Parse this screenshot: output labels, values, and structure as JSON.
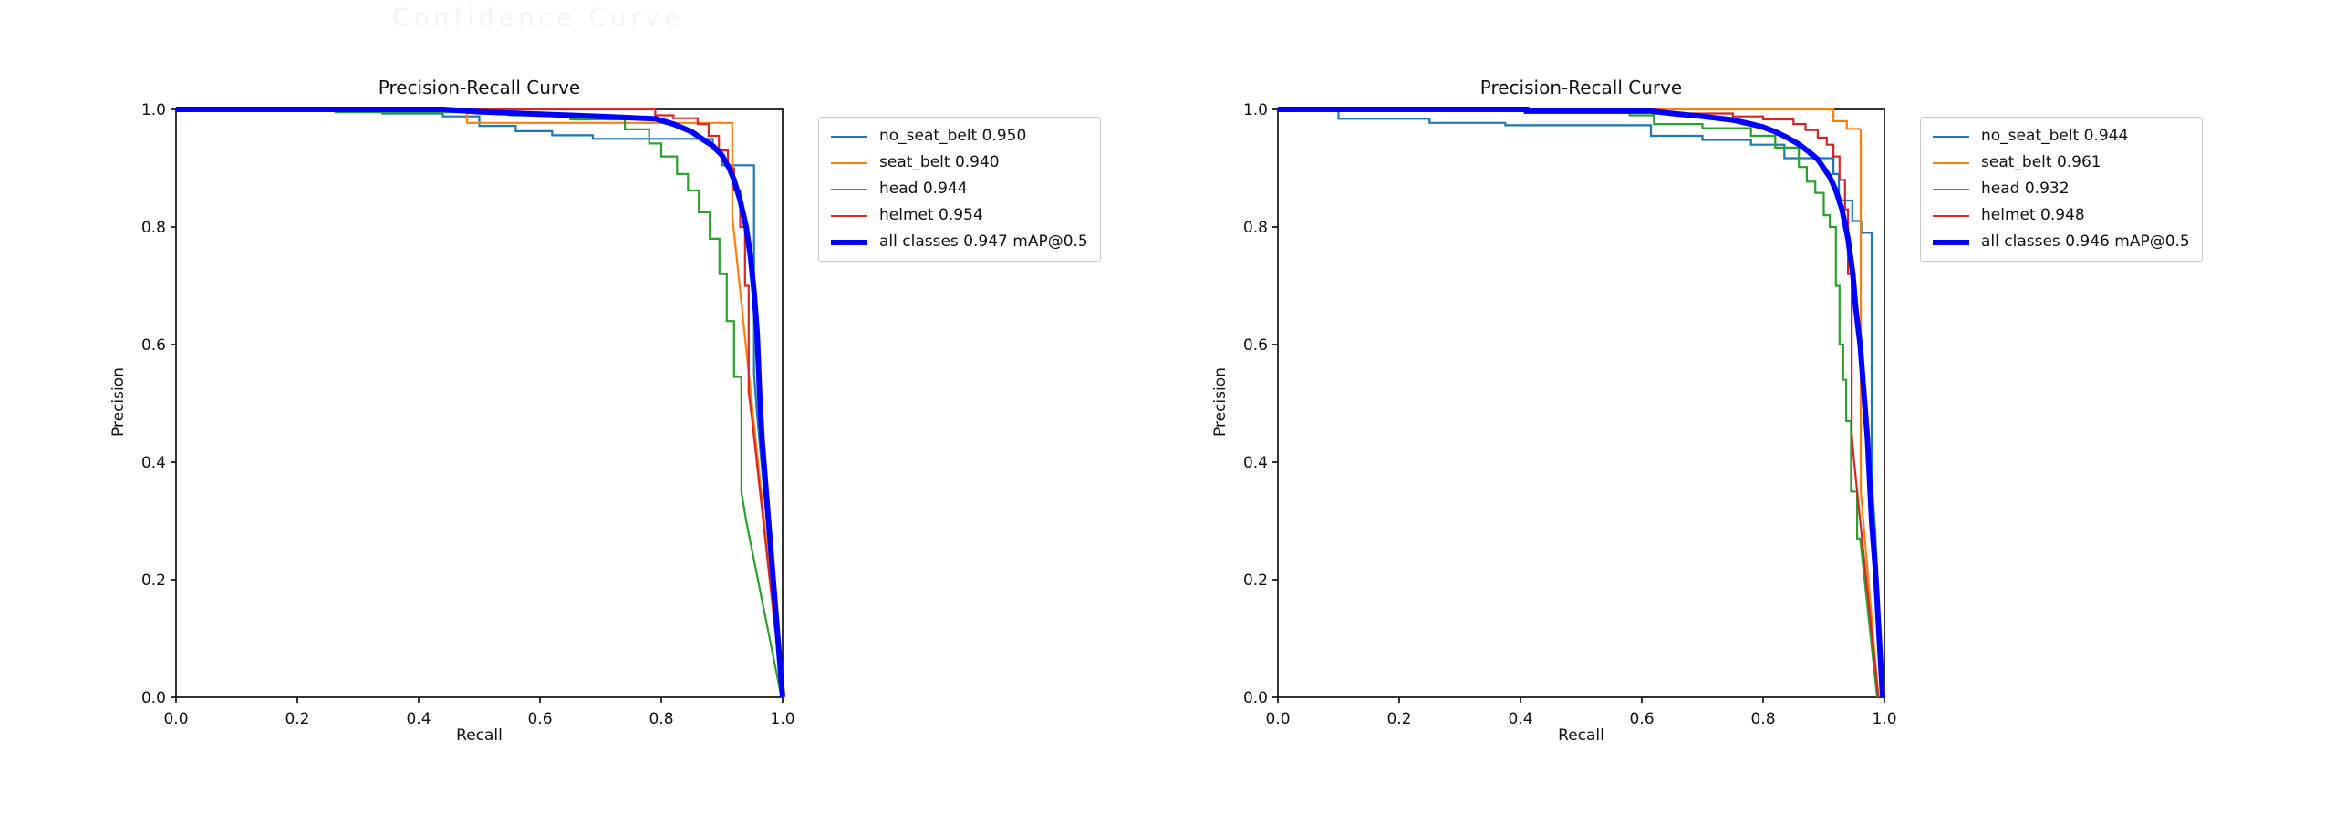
{
  "page": {
    "background": "#ffffff",
    "ghost_text": "Confidence Curve"
  },
  "chart_data": [
    {
      "type": "line",
      "side": "left",
      "title": "Precision-Recall Curve",
      "xlabel": "Recall",
      "ylabel": "Precision",
      "xlim": [
        0.0,
        1.0
      ],
      "ylim": [
        0.0,
        1.0
      ],
      "xticks": [
        "0.0",
        "0.2",
        "0.4",
        "0.6",
        "0.8",
        "1.0"
      ],
      "yticks": [
        "0.0",
        "0.2",
        "0.4",
        "0.6",
        "0.8",
        "1.0"
      ],
      "grid": false,
      "legend_position": "outside-right",
      "series": [
        {
          "name": "no_seat_belt 0.950",
          "color": "#1f77b4",
          "width": 2.2,
          "points": [
            [
              0,
              1
            ],
            [
              0.34,
              1
            ],
            [
              0.34,
              0.993
            ],
            [
              0.44,
              0.993
            ],
            [
              0.44,
              0.988
            ],
            [
              0.5,
              0.988
            ],
            [
              0.5,
              0.972
            ],
            [
              0.56,
              0.972
            ],
            [
              0.56,
              0.963
            ],
            [
              0.62,
              0.963
            ],
            [
              0.62,
              0.956
            ],
            [
              0.687,
              0.956
            ],
            [
              0.687,
              0.95
            ],
            [
              0.885,
              0.95
            ],
            [
              0.885,
              0.932
            ],
            [
              0.9,
              0.932
            ],
            [
              0.9,
              0.905
            ],
            [
              0.953,
              0.905
            ],
            [
              0.953,
              0.55
            ],
            [
              0.958,
              0.48
            ],
            [
              1.0,
              0.0
            ]
          ]
        },
        {
          "name": "seat_belt 0.940",
          "color": "#ff7f0e",
          "width": 2.2,
          "points": [
            [
              0,
              1
            ],
            [
              0.48,
              1
            ],
            [
              0.48,
              0.977
            ],
            [
              0.917,
              0.977
            ],
            [
              0.917,
              0.82
            ],
            [
              1.0,
              0.0
            ]
          ]
        },
        {
          "name": "head 0.944",
          "color": "#2ca02c",
          "width": 2.2,
          "points": [
            [
              0,
              1
            ],
            [
              0.263,
              1
            ],
            [
              0.263,
              0.995
            ],
            [
              0.55,
              0.995
            ],
            [
              0.55,
              0.99
            ],
            [
              0.65,
              0.99
            ],
            [
              0.65,
              0.983
            ],
            [
              0.74,
              0.983
            ],
            [
              0.74,
              0.966
            ],
            [
              0.78,
              0.966
            ],
            [
              0.78,
              0.942
            ],
            [
              0.8,
              0.942
            ],
            [
              0.8,
              0.92
            ],
            [
              0.826,
              0.92
            ],
            [
              0.826,
              0.89
            ],
            [
              0.844,
              0.89
            ],
            [
              0.844,
              0.862
            ],
            [
              0.862,
              0.862
            ],
            [
              0.862,
              0.825
            ],
            [
              0.88,
              0.825
            ],
            [
              0.88,
              0.78
            ],
            [
              0.896,
              0.78
            ],
            [
              0.896,
              0.72
            ],
            [
              0.908,
              0.72
            ],
            [
              0.908,
              0.64
            ],
            [
              0.92,
              0.64
            ],
            [
              0.92,
              0.545
            ],
            [
              0.932,
              0.545
            ],
            [
              0.932,
              0.35
            ],
            [
              0.94,
              0.3
            ],
            [
              0.998,
              0.0
            ]
          ]
        },
        {
          "name": "helmet 0.954",
          "color": "#d62728",
          "width": 2.2,
          "points": [
            [
              0,
              1
            ],
            [
              0.79,
              1
            ],
            [
              0.79,
              0.99
            ],
            [
              0.82,
              0.99
            ],
            [
              0.82,
              0.985
            ],
            [
              0.86,
              0.985
            ],
            [
              0.86,
              0.975
            ],
            [
              0.878,
              0.975
            ],
            [
              0.878,
              0.955
            ],
            [
              0.895,
              0.955
            ],
            [
              0.895,
              0.93
            ],
            [
              0.91,
              0.93
            ],
            [
              0.91,
              0.9
            ],
            [
              0.92,
              0.9
            ],
            [
              0.92,
              0.862
            ],
            [
              0.93,
              0.862
            ],
            [
              0.93,
              0.8
            ],
            [
              0.938,
              0.8
            ],
            [
              0.938,
              0.7
            ],
            [
              0.944,
              0.7
            ],
            [
              0.944,
              0.52
            ],
            [
              0.95,
              0.47
            ],
            [
              1.0,
              0.0
            ]
          ]
        },
        {
          "name": "all classes 0.947 mAP@0.5",
          "color": "#0000ff",
          "width": 6,
          "points": [
            [
              0,
              1
            ],
            [
              0.44,
              1
            ],
            [
              0.5,
              0.996
            ],
            [
              0.6,
              0.992
            ],
            [
              0.7,
              0.988
            ],
            [
              0.79,
              0.984
            ],
            [
              0.82,
              0.975
            ],
            [
              0.85,
              0.962
            ],
            [
              0.87,
              0.948
            ],
            [
              0.885,
              0.938
            ],
            [
              0.9,
              0.922
            ],
            [
              0.912,
              0.9
            ],
            [
              0.92,
              0.88
            ],
            [
              0.93,
              0.845
            ],
            [
              0.94,
              0.8
            ],
            [
              0.947,
              0.75
            ],
            [
              0.953,
              0.69
            ],
            [
              0.958,
              0.62
            ],
            [
              0.962,
              0.52
            ],
            [
              0.966,
              0.44
            ],
            [
              1.0,
              0.0
            ]
          ]
        }
      ]
    },
    {
      "type": "line",
      "side": "right",
      "title": "Precision-Recall Curve",
      "xlabel": "Recall",
      "ylabel": "Precision",
      "xlim": [
        0.0,
        1.0
      ],
      "ylim": [
        0.0,
        1.0
      ],
      "xticks": [
        "0.0",
        "0.2",
        "0.4",
        "0.6",
        "0.8",
        "1.0"
      ],
      "yticks": [
        "0.0",
        "0.2",
        "0.4",
        "0.6",
        "0.8",
        "1.0"
      ],
      "grid": false,
      "legend_position": "outside-right",
      "series": [
        {
          "name": "no_seat_belt 0.944",
          "color": "#1f77b4",
          "width": 2.2,
          "points": [
            [
              0,
              1
            ],
            [
              0.1,
              1
            ],
            [
              0.1,
              0.984
            ],
            [
              0.25,
              0.984
            ],
            [
              0.25,
              0.977
            ],
            [
              0.375,
              0.977
            ],
            [
              0.375,
              0.973
            ],
            [
              0.615,
              0.973
            ],
            [
              0.615,
              0.955
            ],
            [
              0.7,
              0.955
            ],
            [
              0.7,
              0.948
            ],
            [
              0.78,
              0.948
            ],
            [
              0.78,
              0.94
            ],
            [
              0.835,
              0.94
            ],
            [
              0.835,
              0.917
            ],
            [
              0.916,
              0.917
            ],
            [
              0.916,
              0.89
            ],
            [
              0.925,
              0.89
            ],
            [
              0.925,
              0.845
            ],
            [
              0.947,
              0.845
            ],
            [
              0.947,
              0.81
            ],
            [
              0.962,
              0.81
            ],
            [
              0.962,
              0.79
            ],
            [
              0.979,
              0.79
            ],
            [
              0.979,
              0.37
            ],
            [
              0.985,
              0.28
            ],
            [
              0.997,
              0.0
            ]
          ]
        },
        {
          "name": "seat_belt 0.961",
          "color": "#ff7f0e",
          "width": 2.2,
          "points": [
            [
              0,
              1
            ],
            [
              0.916,
              1
            ],
            [
              0.916,
              0.98
            ],
            [
              0.938,
              0.98
            ],
            [
              0.938,
              0.967
            ],
            [
              0.958,
              0.967
            ],
            [
              0.961,
              0.965
            ],
            [
              0.961,
              0.35
            ],
            [
              0.99,
              0.0
            ]
          ]
        },
        {
          "name": "head 0.932",
          "color": "#2ca02c",
          "width": 2.2,
          "points": [
            [
              0,
              1
            ],
            [
              0.3,
              1
            ],
            [
              0.3,
              0.997
            ],
            [
              0.58,
              0.997
            ],
            [
              0.58,
              0.99
            ],
            [
              0.62,
              0.99
            ],
            [
              0.62,
              0.975
            ],
            [
              0.7,
              0.975
            ],
            [
              0.7,
              0.968
            ],
            [
              0.78,
              0.968
            ],
            [
              0.78,
              0.955
            ],
            [
              0.82,
              0.955
            ],
            [
              0.82,
              0.935
            ],
            [
              0.859,
              0.935
            ],
            [
              0.859,
              0.902
            ],
            [
              0.872,
              0.902
            ],
            [
              0.872,
              0.877
            ],
            [
              0.886,
              0.877
            ],
            [
              0.886,
              0.858
            ],
            [
              0.9,
              0.858
            ],
            [
              0.9,
              0.82
            ],
            [
              0.91,
              0.82
            ],
            [
              0.91,
              0.8
            ],
            [
              0.92,
              0.8
            ],
            [
              0.92,
              0.7
            ],
            [
              0.926,
              0.7
            ],
            [
              0.926,
              0.6
            ],
            [
              0.932,
              0.6
            ],
            [
              0.932,
              0.54
            ],
            [
              0.937,
              0.54
            ],
            [
              0.937,
              0.47
            ],
            [
              0.945,
              0.47
            ],
            [
              0.945,
              0.35
            ],
            [
              0.955,
              0.35
            ],
            [
              0.955,
              0.27
            ],
            [
              0.96,
              0.27
            ],
            [
              0.988,
              0.0
            ]
          ]
        },
        {
          "name": "helmet 0.948",
          "color": "#d62728",
          "width": 2.2,
          "points": [
            [
              0,
              1
            ],
            [
              0.62,
              1
            ],
            [
              0.62,
              0.993
            ],
            [
              0.75,
              0.993
            ],
            [
              0.75,
              0.988
            ],
            [
              0.8,
              0.988
            ],
            [
              0.8,
              0.983
            ],
            [
              0.85,
              0.983
            ],
            [
              0.85,
              0.975
            ],
            [
              0.87,
              0.975
            ],
            [
              0.87,
              0.965
            ],
            [
              0.89,
              0.965
            ],
            [
              0.89,
              0.952
            ],
            [
              0.905,
              0.952
            ],
            [
              0.905,
              0.94
            ],
            [
              0.916,
              0.94
            ],
            [
              0.916,
              0.92
            ],
            [
              0.926,
              0.92
            ],
            [
              0.926,
              0.88
            ],
            [
              0.935,
              0.88
            ],
            [
              0.935,
              0.83
            ],
            [
              0.94,
              0.83
            ],
            [
              0.94,
              0.72
            ],
            [
              0.946,
              0.72
            ],
            [
              0.946,
              0.45
            ],
            [
              0.95,
              0.4
            ],
            [
              0.99,
              0.0
            ]
          ]
        },
        {
          "name": "all classes 0.946 mAP@0.5",
          "color": "#0000ff",
          "width": 6,
          "points": [
            [
              0,
              1
            ],
            [
              0.41,
              1
            ],
            [
              0.41,
              0.997
            ],
            [
              0.615,
              0.997
            ],
            [
              0.65,
              0.993
            ],
            [
              0.7,
              0.988
            ],
            [
              0.75,
              0.982
            ],
            [
              0.78,
              0.975
            ],
            [
              0.8,
              0.97
            ],
            [
              0.82,
              0.962
            ],
            [
              0.84,
              0.952
            ],
            [
              0.86,
              0.94
            ],
            [
              0.875,
              0.928
            ],
            [
              0.89,
              0.915
            ],
            [
              0.9,
              0.9
            ],
            [
              0.91,
              0.885
            ],
            [
              0.92,
              0.862
            ],
            [
              0.93,
              0.83
            ],
            [
              0.94,
              0.78
            ],
            [
              0.948,
              0.72
            ],
            [
              0.953,
              0.66
            ],
            [
              0.96,
              0.6
            ],
            [
              0.966,
              0.52
            ],
            [
              0.972,
              0.44
            ],
            [
              0.979,
              0.3
            ],
            [
              0.985,
              0.22
            ],
            [
              0.997,
              0.0
            ]
          ]
        }
      ]
    }
  ]
}
